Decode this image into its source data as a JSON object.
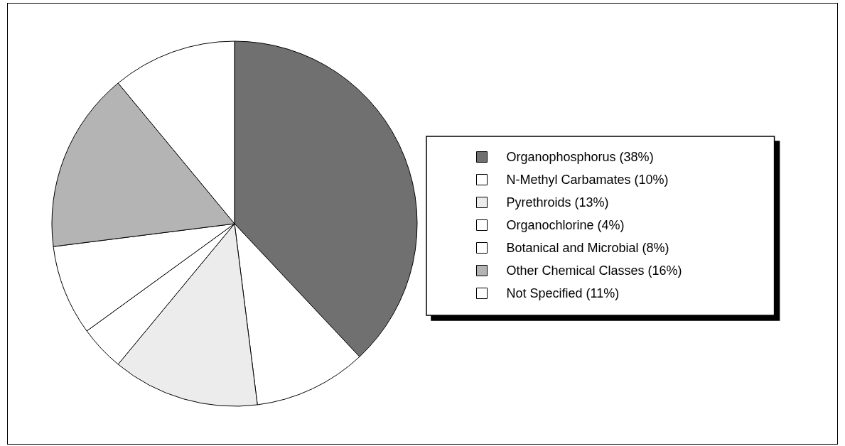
{
  "chart_data": {
    "type": "pie",
    "categories": [
      "Organophosphorus (38%)",
      "N-Methyl Carbamates (10%)",
      "Pyrethroids (13%)",
      "Organochlorine (4%)",
      "Botanical and Microbial (8%)",
      "Other Chemical Classes (16%)",
      "Not Specified (11%)"
    ],
    "values": [
      38,
      10,
      13,
      4,
      8,
      16,
      11
    ],
    "colors": [
      "#707070",
      "#ffffff",
      "#ececec",
      "#ffffff",
      "#ffffff",
      "#b4b4b4",
      "#ffffff"
    ],
    "legend": "right"
  }
}
